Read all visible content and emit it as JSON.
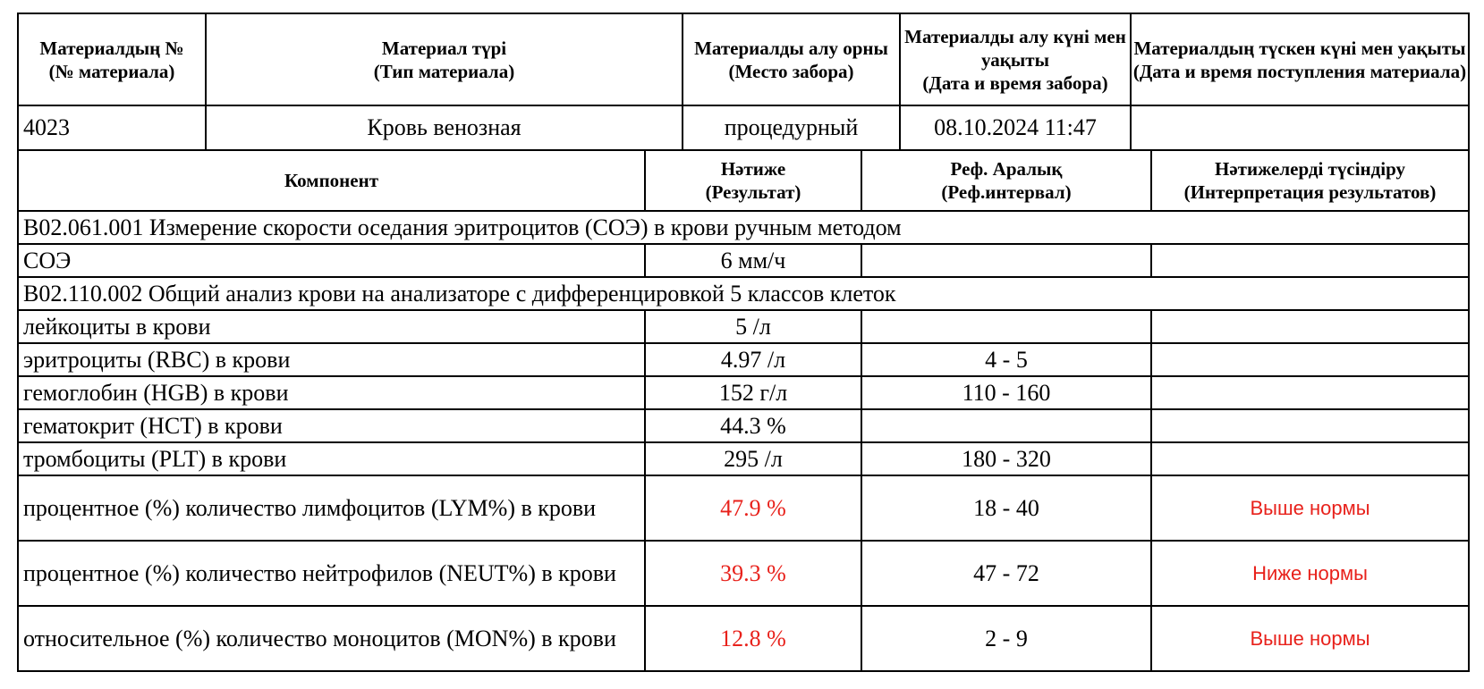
{
  "material_table": {
    "headers": [
      {
        "l1": "Материалдың №",
        "l2": "(№ материала)"
      },
      {
        "l1": "Материал түрі",
        "l2": "(Тип материала)"
      },
      {
        "l1": "Материалды алу орны",
        "l2": "(Место забора)"
      },
      {
        "l1": "Материалды алу күні мен уақыты",
        "l2": "(Дата и время забора)"
      },
      {
        "l1": "Материалдың түскен күні мен уақыты",
        "l2": "(Дата и время поступления материала)"
      }
    ],
    "row": {
      "number": "4023",
      "type": "Кровь венозная",
      "place": "процедурный",
      "collected": "08.10.2024 11:47",
      "received": ""
    }
  },
  "results_table": {
    "headers": {
      "component": "Компонент",
      "result_l1": "Нәтиже",
      "result_l2": "(Результат)",
      "ref_l1": "Реф. Аралық",
      "ref_l2": "(Реф.интервал)",
      "interp_l1": "Нәтижелерді түсіндіру",
      "interp_l2": "(Интерпретация результатов)"
    },
    "section1": "B02.061.001 Измерение скорости оседания эритроцитов (СОЭ) в крови ручным методом",
    "soe": {
      "component": "СОЭ",
      "result": "6 мм/ч",
      "ref": "",
      "interp": ""
    },
    "section2": "B02.110.002 Общий анализ крови на анализаторе с дифференцировкой 5 классов клеток",
    "rows": [
      {
        "component": "лейкоциты в крови",
        "result": "5 /л",
        "ref": "",
        "interp": ""
      },
      {
        "component": "эритроциты (RBC) в крови",
        "result": "4.97 /л",
        "ref": "4 - 5",
        "interp": ""
      },
      {
        "component": "гемоглобин (HGB) в крови",
        "result": "152 г/л",
        "ref": "110 - 160",
        "interp": ""
      },
      {
        "component": "гематокрит (HCT) в крови",
        "result": "44.3 %",
        "ref": "",
        "interp": ""
      },
      {
        "component": "тромбоциты (PLT) в крови",
        "result": "295 /л",
        "ref": "180 - 320",
        "interp": ""
      }
    ],
    "abnormal_rows": [
      {
        "component": "процентное (%) количество лимфоцитов (LYM%) в крови",
        "result": "47.9 %",
        "ref": "18 - 40",
        "interp": "Выше нормы"
      },
      {
        "component": "процентное (%) количество нейтрофилов (NEUT%) в крови",
        "result": "39.3 %",
        "ref": "47 - 72",
        "interp": "Ниже нормы"
      },
      {
        "component": "относительное (%) количество моноцитов (MON%) в крови",
        "result": "12.8 %",
        "ref": "2 - 9",
        "interp": "Выше нормы"
      }
    ]
  },
  "colors": {
    "abnormal": "#e8211b",
    "border": "#000000"
  }
}
